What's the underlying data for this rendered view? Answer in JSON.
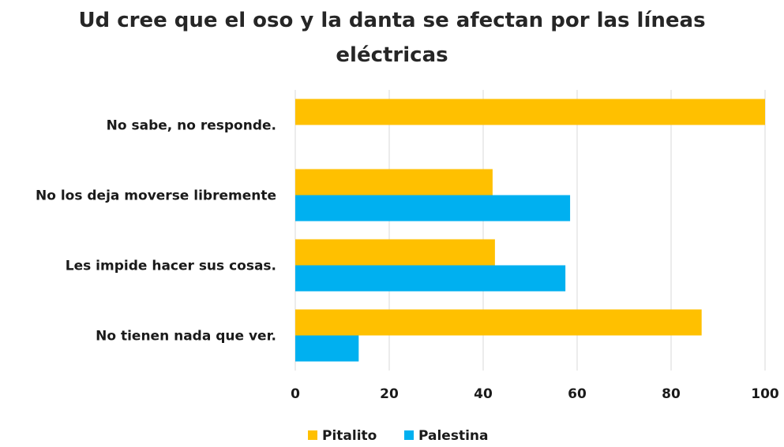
{
  "chart_data": {
    "type": "bar",
    "orientation": "horizontal",
    "title": "Ud cree que el oso y la danta se afectan por las líneas eléctricas",
    "categories": [
      "No sabe, no responde.",
      "No los deja moverse libremente",
      "Les impide hacer sus cosas.",
      "No tienen nada que ver."
    ],
    "series": [
      {
        "name": "Pitalito",
        "color": "#FFC000",
        "values": [
          100,
          42,
          42.5,
          86.5
        ]
      },
      {
        "name": "Palestina",
        "color": "#00B0F0",
        "values": [
          0,
          58.5,
          57.5,
          13.5
        ]
      }
    ],
    "xlim": [
      0,
      100
    ],
    "xticks": [
      "0",
      "20",
      "40",
      "60",
      "80",
      "100"
    ],
    "grid": true,
    "legend": "bottom"
  }
}
